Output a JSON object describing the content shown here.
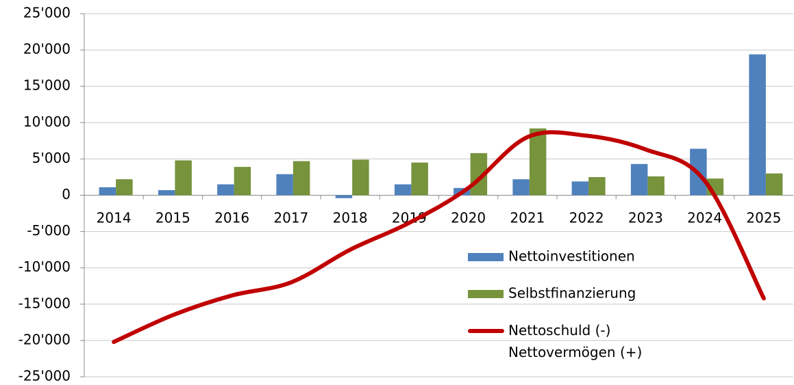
{
  "chart_data": {
    "type": "bar",
    "categories": [
      "2014",
      "2015",
      "2016",
      "2017",
      "2018",
      "2019",
      "2020",
      "2021",
      "2022",
      "2023",
      "2024",
      "2025"
    ],
    "series": [
      {
        "name": "Nettoinvestitionen",
        "color": "#4f81bd",
        "type": "bar",
        "values": [
          1100,
          700,
          1500,
          2900,
          -400,
          1500,
          1000,
          2200,
          1900,
          4300,
          6400,
          19400
        ]
      },
      {
        "name": "Selbstfinanzierung",
        "color": "#77933c",
        "type": "bar",
        "values": [
          2200,
          4800,
          3900,
          4700,
          4900,
          4500,
          5800,
          9200,
          2500,
          2600,
          2300,
          3000
        ]
      },
      {
        "name": "Nettoschuld (-)\nNettovermögen (+)",
        "color": "#c00000",
        "type": "line",
        "values": [
          -20200,
          -16500,
          -13800,
          -12000,
          -7500,
          -3800,
          1000,
          8000,
          8200,
          6300,
          2000,
          -14200
        ]
      }
    ],
    "ylim": [
      -25000,
      25000
    ],
    "yticks": [
      {
        "value": -25000,
        "label": "-25'000"
      },
      {
        "value": -20000,
        "label": "-20'000"
      },
      {
        "value": -15000,
        "label": "-15'000"
      },
      {
        "value": -10000,
        "label": "-10'000"
      },
      {
        "value": -5000,
        "label": "-5'000"
      },
      0,
      {
        "value": 5000,
        "label": "5'000"
      },
      {
        "value": 10000,
        "label": "10'000"
      },
      {
        "value": 15000,
        "label": "15'000"
      },
      {
        "value": 20000,
        "label": "20'000"
      },
      {
        "value": 25000,
        "label": "25'000"
      }
    ],
    "grid": true
  }
}
